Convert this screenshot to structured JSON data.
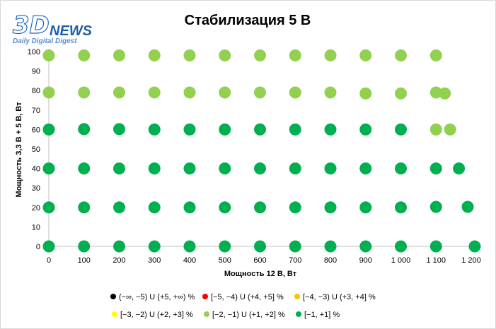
{
  "logo": {
    "text_3d": "3D",
    "text_news": "NEWS",
    "tagline": "Daily Digital Digest",
    "colors": {
      "primary": "#1f5fa8",
      "accent": "#5a8fd0"
    }
  },
  "chart_data": {
    "type": "scatter",
    "title": "Стабилизация 5 В",
    "xlabel": "Мощность  12 В, Вт",
    "ylabel": "Мощность  3,3 В + 5 В, Вт",
    "xlim": [
      0,
      1200
    ],
    "ylim": [
      0,
      100
    ],
    "x_ticks": [
      0,
      100,
      200,
      300,
      400,
      500,
      600,
      700,
      800,
      900,
      1000,
      1100,
      1200
    ],
    "x_tick_labels": [
      "0",
      "100",
      "200",
      "300",
      "400",
      "500",
      "600",
      "700",
      "800",
      "900",
      "1 000",
      "1 100",
      "1 200"
    ],
    "y_ticks": [
      0,
      10,
      20,
      30,
      40,
      50,
      60,
      70,
      80,
      90,
      100
    ],
    "y_tick_labels": [
      "0",
      "10",
      "20",
      "30",
      "40",
      "50",
      "60",
      "70",
      "80",
      "90",
      "100"
    ],
    "grid": false,
    "legend_position": "bottom",
    "legend_rows": [
      [
        0,
        1,
        2
      ],
      [
        3,
        4,
        5
      ]
    ],
    "series": [
      {
        "name": "(−∞, −5) U (+5, +∞) %",
        "color": "#000000",
        "points": []
      },
      {
        "name": "[−5, −4) U (+4, +5] %",
        "color": "#ff0000",
        "points": []
      },
      {
        "name": "[−4, −3) U (+3, +4] %",
        "color": "#ffc000",
        "points": []
      },
      {
        "name": "[−3, −2) U (+2, +3] %",
        "color": "#ffff00",
        "points": []
      },
      {
        "name": "[−2, −1) U (+1, +2] %",
        "color": "#92d050",
        "points": [
          [
            0,
            98
          ],
          [
            100,
            98
          ],
          [
            200,
            98
          ],
          [
            300,
            98
          ],
          [
            400,
            98
          ],
          [
            500,
            98
          ],
          [
            600,
            98
          ],
          [
            700,
            98
          ],
          [
            800,
            98
          ],
          [
            900,
            98
          ],
          [
            1000,
            98
          ],
          [
            1100,
            98
          ],
          [
            0,
            79
          ],
          [
            100,
            79
          ],
          [
            200,
            79
          ],
          [
            300,
            79
          ],
          [
            400,
            79
          ],
          [
            500,
            79
          ],
          [
            600,
            79
          ],
          [
            700,
            79
          ],
          [
            800,
            79
          ],
          [
            900,
            78.5
          ],
          [
            1000,
            78.5
          ],
          [
            1100,
            79
          ],
          [
            1125,
            78.5
          ],
          [
            1100,
            60
          ],
          [
            1140,
            60
          ]
        ]
      },
      {
        "name": "[−1, +1] %",
        "color": "#00b050",
        "points": [
          [
            0,
            60
          ],
          [
            100,
            60.2
          ],
          [
            200,
            60.2
          ],
          [
            300,
            60
          ],
          [
            400,
            60
          ],
          [
            500,
            60
          ],
          [
            600,
            60
          ],
          [
            700,
            60
          ],
          [
            800,
            60
          ],
          [
            900,
            60
          ],
          [
            1000,
            60
          ],
          [
            0,
            40
          ],
          [
            100,
            40
          ],
          [
            200,
            40
          ],
          [
            300,
            40
          ],
          [
            400,
            40
          ],
          [
            500,
            40
          ],
          [
            600,
            40
          ],
          [
            700,
            40
          ],
          [
            800,
            40
          ],
          [
            900,
            40
          ],
          [
            1000,
            40
          ],
          [
            1100,
            40
          ],
          [
            1165,
            40
          ],
          [
            0,
            20
          ],
          [
            100,
            20
          ],
          [
            200,
            20
          ],
          [
            300,
            20
          ],
          [
            400,
            20
          ],
          [
            500,
            20
          ],
          [
            600,
            20
          ],
          [
            700,
            20
          ],
          [
            800,
            20
          ],
          [
            900,
            20
          ],
          [
            1000,
            20
          ],
          [
            1100,
            20.3
          ],
          [
            1190,
            20.3
          ],
          [
            0,
            0
          ],
          [
            100,
            0
          ],
          [
            200,
            0
          ],
          [
            300,
            0
          ],
          [
            400,
            0
          ],
          [
            500,
            0
          ],
          [
            600,
            0
          ],
          [
            700,
            0
          ],
          [
            800,
            0
          ],
          [
            900,
            0
          ],
          [
            1000,
            0
          ],
          [
            1100,
            0
          ],
          [
            1210,
            0
          ]
        ]
      }
    ]
  }
}
